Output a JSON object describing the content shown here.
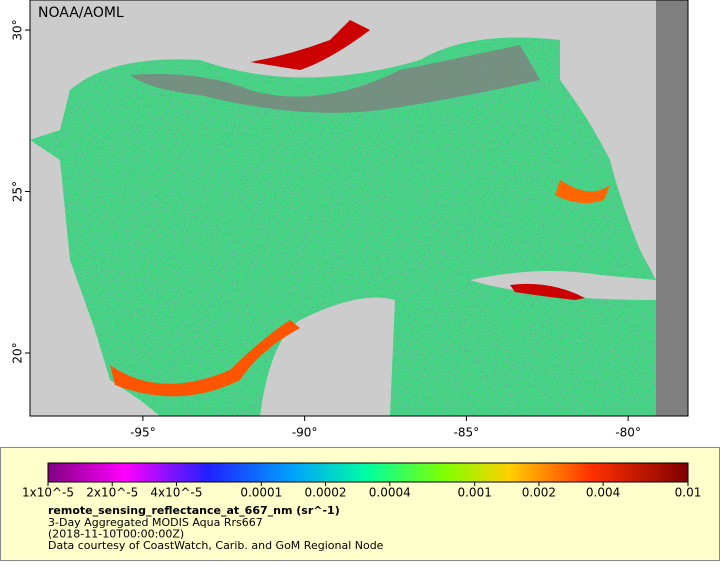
{
  "map": {
    "source_label": "NOAA/AOML",
    "xlim": [
      -98.49,
      -78.15
    ],
    "ylim": [
      18.05,
      30.93
    ],
    "xticks": [
      {
        "value": -95,
        "label": "-95°"
      },
      {
        "value": -90,
        "label": "-90°"
      },
      {
        "value": -85,
        "label": "-85°"
      },
      {
        "value": -80,
        "label": "-80°"
      }
    ],
    "yticks": [
      {
        "value": 30,
        "label": "30°"
      },
      {
        "value": 25,
        "label": "25°"
      },
      {
        "value": 20,
        "label": "20°"
      }
    ]
  },
  "colorbar": {
    "log_scale": true,
    "lim": [
      1e-05,
      0.01
    ],
    "ticks": [
      {
        "value": 1e-05,
        "label": "1x10^-5"
      },
      {
        "value": 2e-05,
        "label": "2x10^-5"
      },
      {
        "value": 4e-05,
        "label": "4x10^-5"
      },
      0.0001,
      0.0002,
      0.0004,
      0.001,
      0.002,
      0.004,
      0.01
    ]
  },
  "legend": {
    "variable": "remote_sensing_reflectance_at_667_nm (sr^-1)",
    "lines": [
      "3-Day Aggregated MODIS Aqua Rrs667",
      "(2018-11-10T00:00:00Z)",
      "Data courtesy of CoastWatch, Carib. and GoM Regional Node"
    ]
  }
}
